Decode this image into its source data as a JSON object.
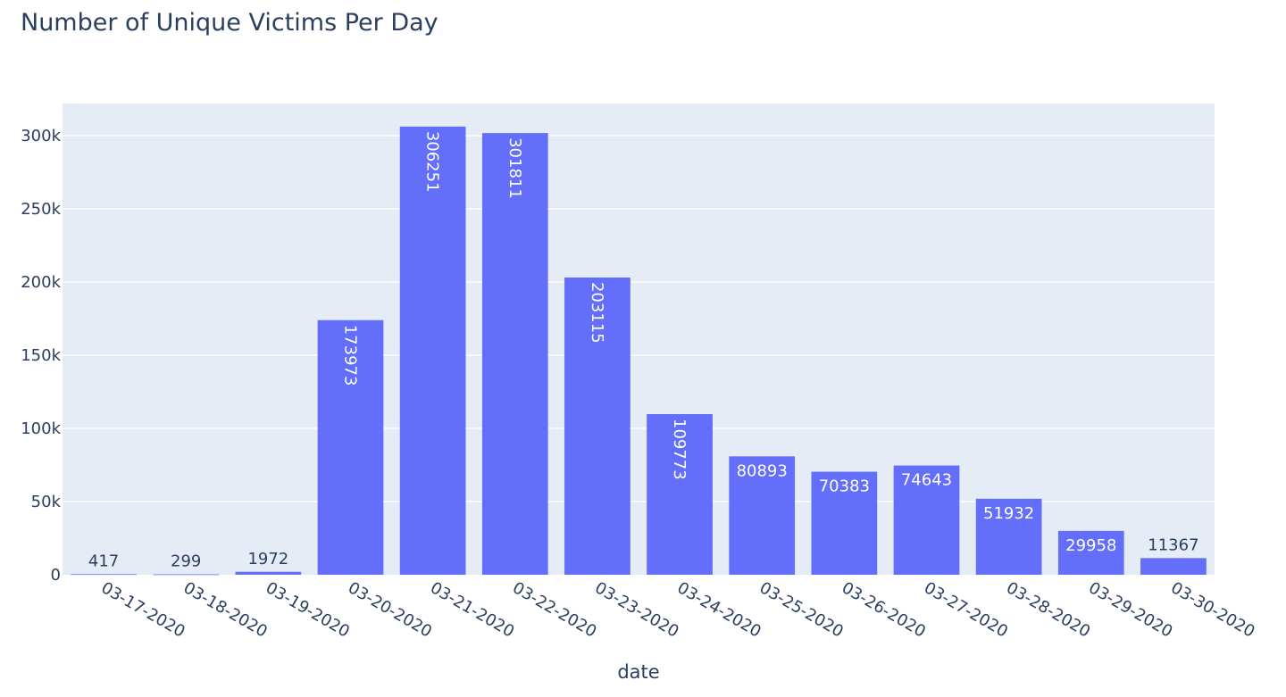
{
  "chart_data": {
    "type": "bar",
    "title": "Number of Unique Victims Per Day",
    "xlabel": "date",
    "ylabel": "",
    "categories": [
      "03-17-2020",
      "03-18-2020",
      "03-19-2020",
      "03-20-2020",
      "03-21-2020",
      "03-22-2020",
      "03-23-2020",
      "03-24-2020",
      "03-25-2020",
      "03-26-2020",
      "03-27-2020",
      "03-28-2020",
      "03-29-2020",
      "03-30-2020"
    ],
    "values": [
      417,
      299,
      1972,
      173973,
      306251,
      301811,
      203115,
      109773,
      80893,
      70383,
      74643,
      51932,
      29958,
      11367
    ],
    "ylim": [
      0,
      322000
    ],
    "yticks": [
      0,
      50000,
      100000,
      150000,
      200000,
      250000,
      300000
    ],
    "ytick_labels": [
      "0",
      "50k",
      "100k",
      "150k",
      "200k",
      "250k",
      "300k"
    ],
    "grid": true,
    "bar_color": "#636efa",
    "plot_bg": "#e5ecf6",
    "label_color_inside": "#ffffff",
    "label_color_outside": "#2a3f5f"
  }
}
